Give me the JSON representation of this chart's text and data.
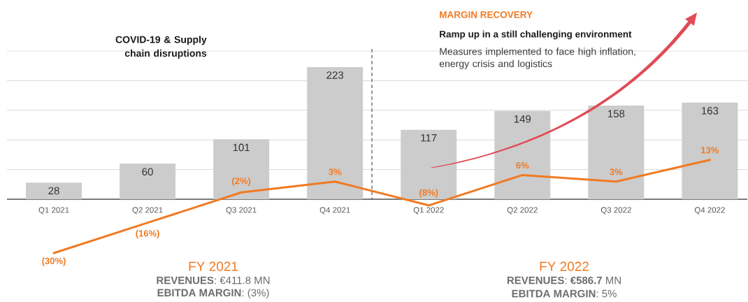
{
  "chart_data": {
    "type": "bar",
    "categories": [
      "Q1 2021",
      "Q2 2021",
      "Q3 2021",
      "Q4 2021",
      "Q1 2022",
      "Q2 2022",
      "Q3 2022",
      "Q4 2022"
    ],
    "series": [
      {
        "color": "#cccccc",
        "values": [
          28,
          60,
          101,
          223,
          117,
          149,
          158,
          163
        ],
        "data_labels": true
      },
      {
        "type": "line",
        "axis": "y2",
        "color": "#f07a22",
        "marker": "none",
        "line_style": "solid",
        "values": [
          -30,
          -16,
          -2,
          3,
          -8,
          6,
          3,
          13
        ],
        "value_labels": [
          "(30%)",
          "(16%)",
          "(2%)",
          "3%",
          "(8%)",
          "6%",
          "3%",
          "13%"
        ]
      }
    ],
    "ylim": [
      0,
      250
    ],
    "grid": "y",
    "tick_labels": "x",
    "annotations": [
      "COVID-19 & Supply chain disruptions",
      "MARGIN RECOVERY",
      "Ramp up in a still challenging environment",
      "Measures implemented to face high inflation, energy crisis and logistics",
      "FY 2021",
      "**REVENUES**: €411.8 MN",
      "**EBITDA MARGIN**: (3%)",
      "FY 2022",
      "**REVENUES**: **€586.7** MN",
      "**EBITDA MARGIN**: 5%"
    ]
  }
}
